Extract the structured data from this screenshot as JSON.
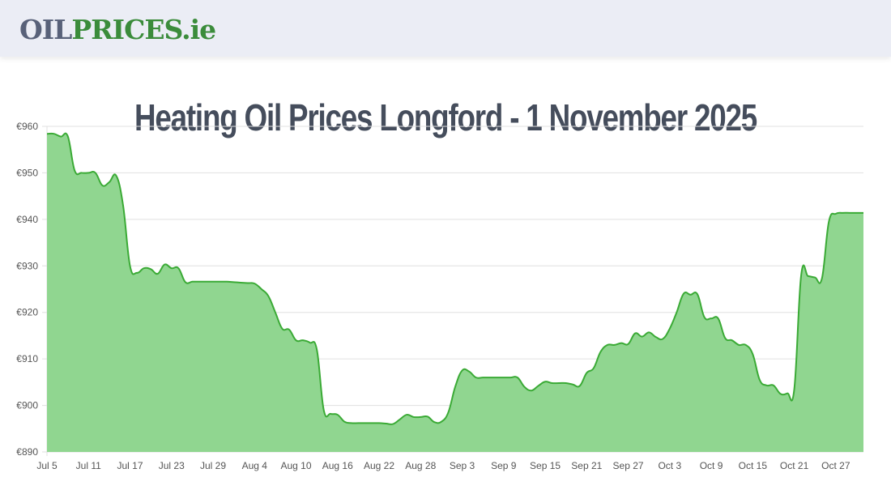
{
  "header": {
    "logo_part1": "OIL",
    "logo_part2": "PRICES.ie"
  },
  "page": {
    "title": "Heating Oil Prices Longford - 1 November 2025"
  },
  "colors": {
    "line": "#3aaa35",
    "fill": "#90d690",
    "grid": "#e0e0e0",
    "title": "#454d5c",
    "logo_grey": "#586179",
    "logo_green": "#3b8c3b"
  },
  "chart_data": {
    "type": "area",
    "title": "Heating Oil Prices Longford - 1 November 2025",
    "xlabel": "",
    "ylabel": "",
    "ylim": [
      890,
      960
    ],
    "yticks": [
      "€960",
      "€950",
      "€940",
      "€930",
      "€920",
      "€910",
      "€900",
      "€890"
    ],
    "ytick_values": [
      960,
      950,
      940,
      930,
      920,
      910,
      900,
      890
    ],
    "xticks": [
      "Jul 5",
      "Jul 11",
      "Jul 17",
      "Jul 23",
      "Jul 29",
      "Aug 4",
      "Aug 10",
      "Aug 16",
      "Aug 22",
      "Aug 28",
      "Sep 3",
      "Sep 9",
      "Sep 15",
      "Sep 21",
      "Sep 27",
      "Oct 3",
      "Oct 9",
      "Oct 15",
      "Oct 21",
      "Oct 27"
    ],
    "grid": true,
    "legend": "none",
    "x_start": "Jul 5",
    "x_end": "Nov 1",
    "series": [
      {
        "name": "Heating oil price (€)",
        "values": [
          958.4,
          958.4,
          957.8,
          957.9,
          950.5,
          950.0,
          950.0,
          950.0,
          947.3,
          948.0,
          949.4,
          943.0,
          930.0,
          928.5,
          929.5,
          929.3,
          928.3,
          930.3,
          929.5,
          929.5,
          926.5,
          926.6,
          926.6,
          926.6,
          926.6,
          926.6,
          926.6,
          926.5,
          926.4,
          926.3,
          926.2,
          925.0,
          923.5,
          920.0,
          916.5,
          916.3,
          914.0,
          914.0,
          913.5,
          912.0,
          899.0,
          898.2,
          898.0,
          896.5,
          896.2,
          896.2,
          896.2,
          896.2,
          896.2,
          896.1,
          896.0,
          897.0,
          898.0,
          897.5,
          897.5,
          897.6,
          896.4,
          896.5,
          898.5,
          904.0,
          907.5,
          907.3,
          906.0,
          906.0,
          906.0,
          906.0,
          906.0,
          906.0,
          906.0,
          904.0,
          903.2,
          904.2,
          905.1,
          904.8,
          904.8,
          904.8,
          904.5,
          904.2,
          907.0,
          908.0,
          911.5,
          913.0,
          913.0,
          913.4,
          913.2,
          915.5,
          914.8,
          915.7,
          914.7,
          914.3,
          916.5,
          920.0,
          924.0,
          923.8,
          923.9,
          919.0,
          918.7,
          918.7,
          914.5,
          914.0,
          913.0,
          913.0,
          911.0,
          905.5,
          904.3,
          904.3,
          902.5,
          902.6,
          903.5,
          928.0,
          927.8,
          927.5,
          927.3,
          939.5,
          941.2,
          941.4,
          941.4,
          941.4,
          941.4
        ]
      }
    ]
  }
}
